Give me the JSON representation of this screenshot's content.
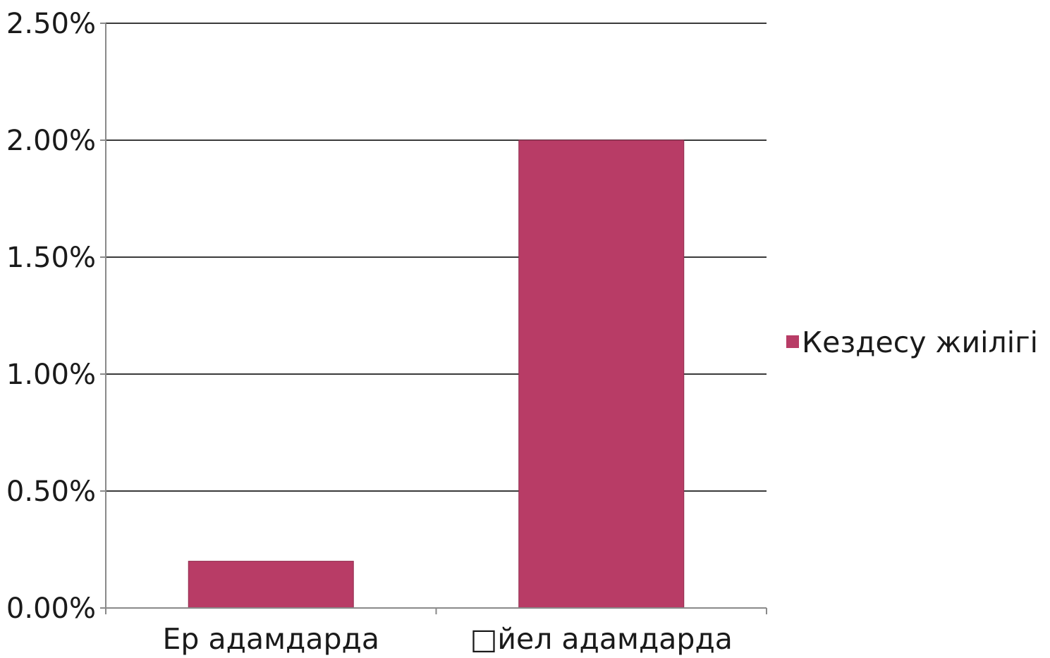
{
  "chart_data": {
    "type": "bar",
    "categories": [
      "Ер адамдарда",
      "□йел адамдарда"
    ],
    "series": [
      {
        "name": "Кездесу жиілігі",
        "values": [
          0.2,
          2.0
        ]
      }
    ],
    "ylim": [
      0,
      2.5
    ],
    "yticks": [
      "0.00%",
      "0.50%",
      "1.00%",
      "1.50%",
      "2.00%",
      "2.50%"
    ],
    "grid": true,
    "legend_position": "right",
    "colors": {
      "bar": "#b83c66",
      "grid": "#3a3a3a",
      "axis": "#8a8a8a"
    }
  }
}
